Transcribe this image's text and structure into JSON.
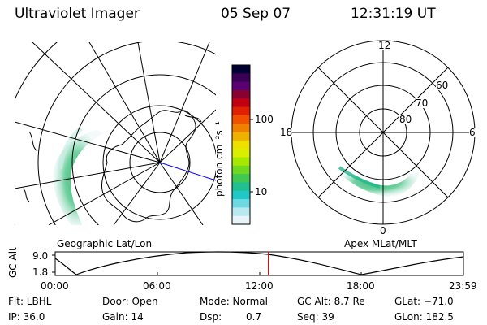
{
  "header": {
    "instrument": "Ultraviolet Imager",
    "date": "05 Sep 07",
    "time": "12:31:19 UT"
  },
  "colorbar": {
    "unit_label": "photon cm⁻²s⁻¹",
    "ticks": [
      "100",
      "10"
    ],
    "colors": [
      "#000033",
      "#3a0055",
      "#5a0070",
      "#8a0030",
      "#c00010",
      "#e02000",
      "#f05000",
      "#f08000",
      "#f0b000",
      "#f0e000",
      "#d8f000",
      "#a8e800",
      "#70d820",
      "#40c850",
      "#20c090",
      "#20c8c8",
      "#70d8e0",
      "#b8e8f0",
      "#e8f4f8"
    ]
  },
  "left_map": {
    "caption": "Geographic Lat/Lon"
  },
  "right_map": {
    "caption": "Apex MLat/MLT",
    "mlt_labels": [
      "12",
      "18",
      "6",
      "0"
    ],
    "mlat_labels": [
      "60",
      "70",
      "80"
    ]
  },
  "altitude_strip": {
    "y_label": "GC Alt",
    "y_ticks": [
      "9.0",
      "1.8"
    ],
    "x_ticks": [
      "00:00",
      "06:00",
      "12:00",
      "18:00",
      "23:59"
    ],
    "current_time_marker_fraction": 0.522
  },
  "status": {
    "flt": "Flt: LBHL",
    "ip": "IP: 36.0",
    "door": "Door: Open",
    "gain": "Gain: 14",
    "mode": "Mode: Normal",
    "dsp_label": "Dsp:",
    "dsp_value": "0.7",
    "gc_alt": "GC Alt: 8.7 Re",
    "seq": "Seq: 39",
    "glat": "GLat: −71.0",
    "glon": "GLon: 182.5"
  }
}
